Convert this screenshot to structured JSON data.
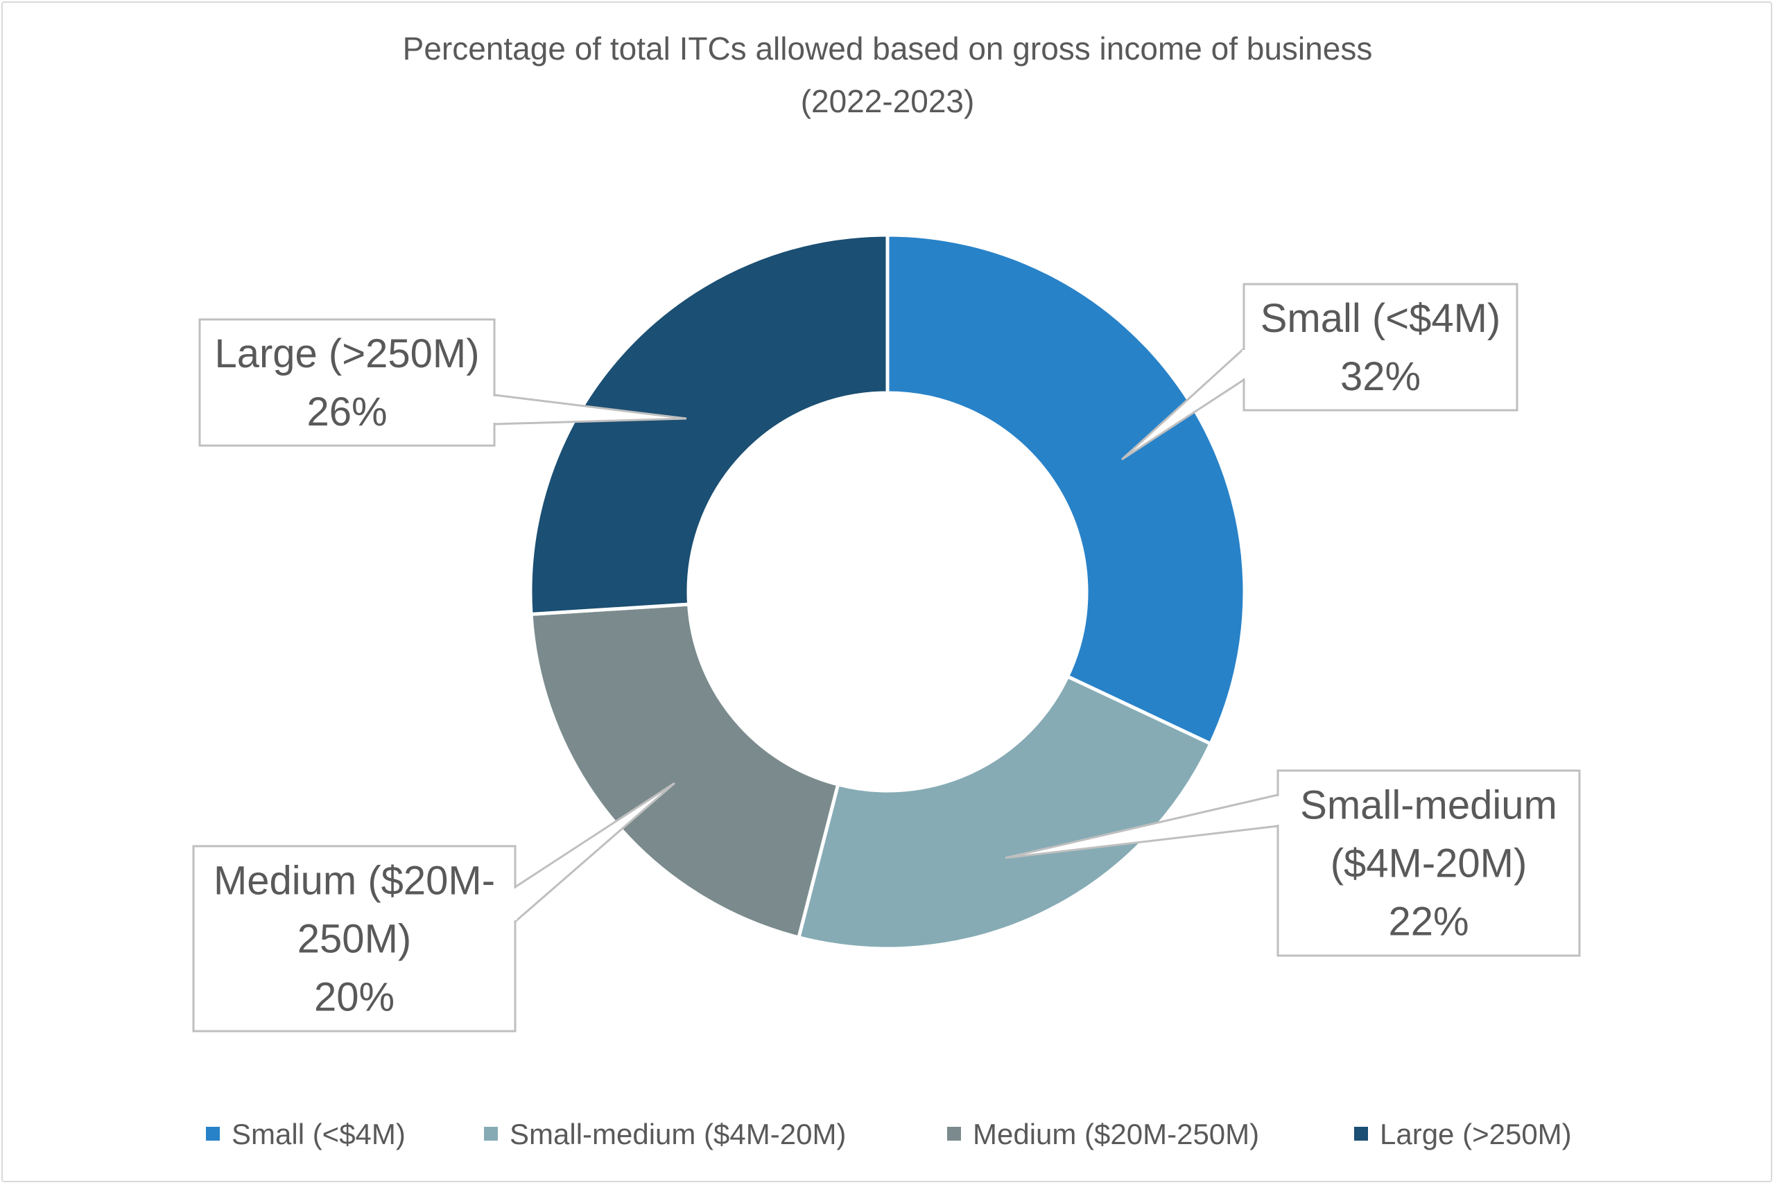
{
  "chart_data": {
    "type": "pie",
    "variant": "doughnut",
    "title": [
      "Percentage of total ITCs allowed based on gross income of business",
      "(2022-2023)"
    ],
    "categories": [
      "Small (<$4M)",
      "Small-medium ($4M-20M)",
      "Medium ($20M-250M)",
      "Large (>250M)"
    ],
    "values": [
      32,
      22,
      20,
      26
    ],
    "value_labels": [
      "32%",
      "22%",
      "20%",
      "26%"
    ],
    "data_label_lines": [
      [
        "Small (<$4M)",
        "32%"
      ],
      [
        "Small-medium",
        "($4M-20M)",
        "22%"
      ],
      [
        "Medium ($20M-",
        "250M)",
        "20%"
      ],
      [
        "Large (>250M)",
        "26%"
      ]
    ],
    "colors": [
      "#2882c8",
      "#86abb5",
      "#7b8b8d",
      "#1b4f73"
    ],
    "legend_position": "bottom"
  }
}
